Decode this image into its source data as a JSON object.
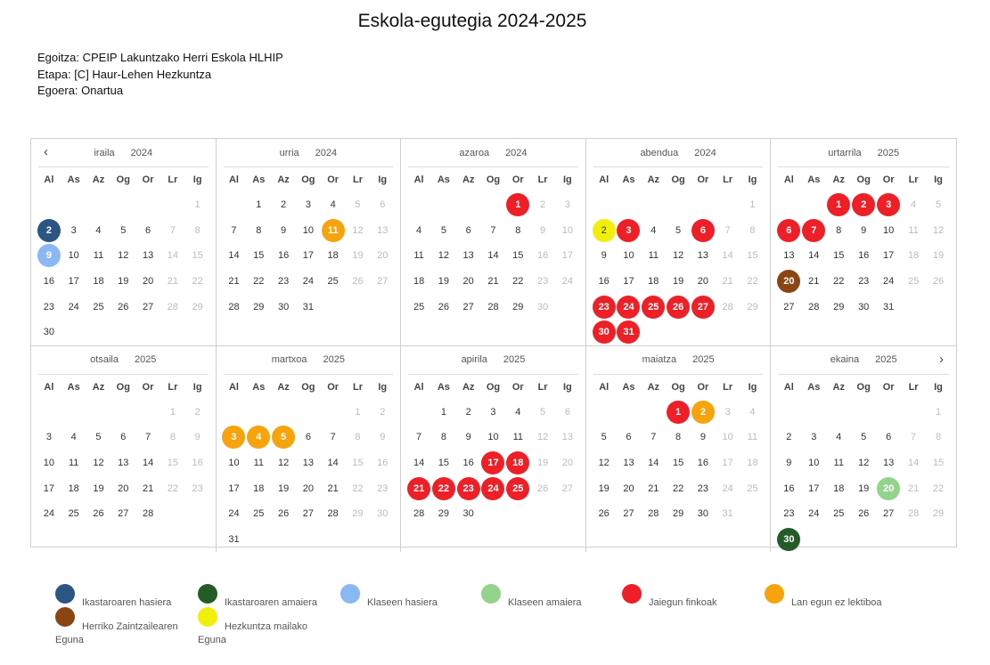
{
  "title": "Eskola-egutegia 2024-2025",
  "info": {
    "line1": "Egoitza: CPEIP Lakuntzako Herri Eskola HLHIP",
    "line2": "Etapa: [C] Haur-Lehen Hezkuntza",
    "line3": "Egoera: Onartua"
  },
  "weekdays": [
    "Al",
    "As",
    "Az",
    "Og",
    "Or",
    "Lr",
    "Ig"
  ],
  "colors": {
    "course_start": "#2b5582",
    "course_end": "#235c27",
    "class_start": "#8ab8f3",
    "class_end": "#94d38c",
    "holiday": "#ee1f26",
    "non_teaching": "#f7a30c",
    "town_day": "#8b4513",
    "education_level": "#f1ee0e"
  },
  "months": [
    {
      "name": "iraila",
      "year": "2024",
      "offset": 6,
      "days": 30,
      "marks": {
        "2": "course_start",
        "9": "class_start"
      }
    },
    {
      "name": "urria",
      "year": "2024",
      "offset": 1,
      "days": 31,
      "marks": {
        "11": "non_teaching"
      }
    },
    {
      "name": "azaroa",
      "year": "2024",
      "offset": 4,
      "days": 30,
      "marks": {
        "1": "holiday"
      }
    },
    {
      "name": "abendua",
      "year": "2024",
      "offset": 6,
      "days": 31,
      "marks": {
        "2": "education_level",
        "3": "holiday",
        "6": "holiday",
        "23": "holiday",
        "24": "holiday",
        "25": "holiday",
        "26": "holiday",
        "27": "holiday",
        "30": "holiday",
        "31": "holiday"
      }
    },
    {
      "name": "urtarrila",
      "year": "2025",
      "offset": 2,
      "days": 31,
      "marks": {
        "1": "holiday",
        "2": "holiday",
        "3": "holiday",
        "6": "holiday",
        "7": "holiday",
        "20": "town_day"
      }
    },
    {
      "name": "otsaila",
      "year": "2025",
      "offset": 5,
      "days": 28,
      "marks": {}
    },
    {
      "name": "martxoa",
      "year": "2025",
      "offset": 5,
      "days": 31,
      "marks": {
        "3": "non_teaching",
        "4": "non_teaching",
        "5": "non_teaching"
      }
    },
    {
      "name": "apirila",
      "year": "2025",
      "offset": 1,
      "days": 30,
      "marks": {
        "17": "holiday",
        "18": "holiday",
        "21": "holiday",
        "22": "holiday",
        "23": "holiday",
        "24": "holiday",
        "25": "holiday"
      }
    },
    {
      "name": "maiatza",
      "year": "2025",
      "offset": 3,
      "days": 31,
      "marks": {
        "1": "holiday",
        "2": "non_teaching"
      }
    },
    {
      "name": "ekaina",
      "year": "2025",
      "offset": 6,
      "days": 30,
      "marks": {
        "20": "class_end",
        "30": "course_end"
      }
    }
  ],
  "nav": {
    "prev_icon": "‹",
    "next_icon": "›"
  },
  "legend": [
    {
      "key": "course_start",
      "label": "Ikastaroaren hasiera"
    },
    {
      "key": "course_end",
      "label": "Ikastaroaren amaiera"
    },
    {
      "key": "class_start",
      "label": "Klaseen hasiera"
    },
    {
      "key": "class_end",
      "label": "Klaseen amaiera"
    },
    {
      "key": "holiday",
      "label": "Jaiegun finkoak"
    },
    {
      "key": "non_teaching",
      "label": "Lan egun ez lektiboa"
    },
    {
      "key": "town_day",
      "label": "Herriko Zaintzailearen Eguna"
    },
    {
      "key": "education_level",
      "label": "Hezkuntza mailako Eguna"
    }
  ]
}
